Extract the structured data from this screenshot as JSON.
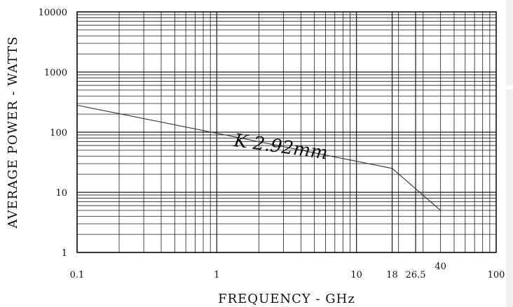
{
  "chart_data": {
    "type": "line",
    "x_scale": "log",
    "y_scale": "log",
    "xlim": [
      0.1,
      100
    ],
    "ylim": [
      1,
      10000
    ],
    "grid": true,
    "xlabel": "FREQUENCY - GHz",
    "ylabel": "AVERAGE POWER - WATTS",
    "x_ticks": [
      {
        "value": 0.1,
        "label": "0.1"
      },
      {
        "value": 1,
        "label": "1"
      },
      {
        "value": 10,
        "label": "10"
      },
      {
        "value": 18,
        "label": "18"
      },
      {
        "value": 26.5,
        "label": "26.5"
      },
      {
        "value": 40,
        "label": "40"
      },
      {
        "value": 100,
        "label": "100"
      }
    ],
    "y_ticks": [
      {
        "value": 1,
        "label": "1"
      },
      {
        "value": 10,
        "label": "10"
      },
      {
        "value": 100,
        "label": "100"
      },
      {
        "value": 1000,
        "label": "1000"
      },
      {
        "value": 10000,
        "label": "10000"
      }
    ],
    "series": [
      {
        "name": "K 2.92mm",
        "x": [
          0.1,
          18,
          40
        ],
        "y": [
          280,
          25,
          5
        ]
      }
    ],
    "annotations": [
      {
        "text": "K 2.92mm",
        "x": 3.3,
        "y": 50
      }
    ]
  },
  "colors": {
    "line": "#333333",
    "grid": "#1a1a1a",
    "side_panel": "#f1f1f1"
  }
}
